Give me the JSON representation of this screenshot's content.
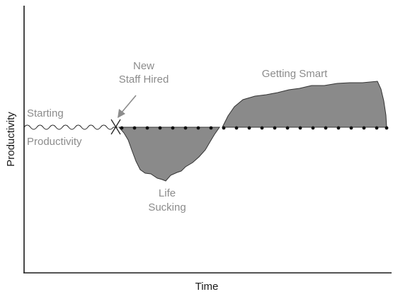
{
  "axes": {
    "x_label": "Time",
    "y_label": "Productivity"
  },
  "annotations": {
    "starting_line1": "Starting",
    "starting_line2": "Productivity",
    "new_staff_line1": "New",
    "new_staff_line2": "Staff Hired",
    "getting_smart": "Getting Smart",
    "life_line1": "Life",
    "life_line2": "Sucking"
  },
  "colors": {
    "fill_region": "#8a8a8a",
    "axis": "#1a1a1a",
    "annotation_text": "#8c8c8c"
  }
}
